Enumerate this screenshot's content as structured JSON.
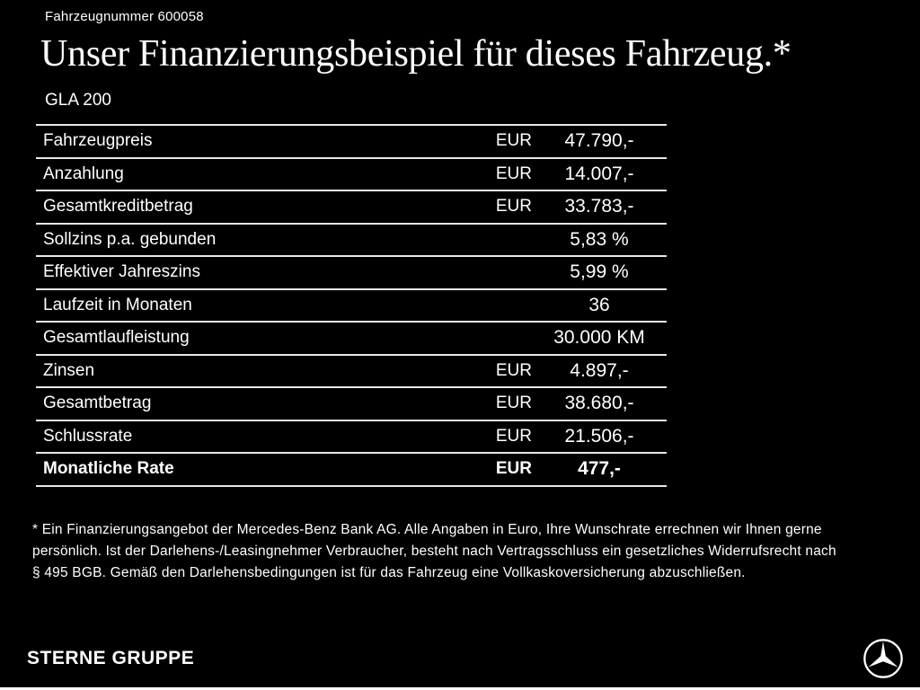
{
  "header": {
    "vehicle_number": "Fahrzeugnummer 600058",
    "title": "Unser Finanzierungsbeispiel für dieses Fahrzeug.*",
    "model": "GLA 200"
  },
  "table": {
    "rows": [
      {
        "label": "Fahrzeugpreis",
        "currency": "EUR",
        "value": "47.790,-",
        "bold": false
      },
      {
        "label": "Anzahlung",
        "currency": "EUR",
        "value": "14.007,-",
        "bold": false
      },
      {
        "label": "Gesamtkreditbetrag",
        "currency": "EUR",
        "value": "33.783,-",
        "bold": false
      },
      {
        "label": "Sollzins p.a. gebunden",
        "currency": "",
        "value": "5,83 %",
        "bold": false
      },
      {
        "label": "Effektiver Jahreszins",
        "currency": "",
        "value": "5,99 %",
        "bold": false
      },
      {
        "label": "Laufzeit in Monaten",
        "currency": "",
        "value": "36",
        "bold": false
      },
      {
        "label": "Gesamtlaufleistung",
        "currency": "",
        "value": "30.000 KM",
        "bold": false
      },
      {
        "label": "Zinsen",
        "currency": "EUR",
        "value": "4.897,-",
        "bold": false
      },
      {
        "label": "Gesamtbetrag",
        "currency": "EUR",
        "value": "38.680,-",
        "bold": false
      },
      {
        "label": "Schlussrate",
        "currency": "EUR",
        "value": "21.506,-",
        "bold": false
      },
      {
        "label": "Monatliche Rate",
        "currency": "EUR",
        "value": "477,-",
        "bold": true
      }
    ]
  },
  "footnote": {
    "lines": [
      "* Ein Finanzierungsangebot der Mercedes-Benz Bank AG. Alle Angaben in Euro, Ihre Wunschrate errechnen wir Ihnen gerne",
      "persönlich. Ist der Darlehens-/Leasingnehmer Verbraucher, besteht nach Vertragsschluss ein gesetzliches Widerrufsrecht nach",
      "§ 495 BGB. Gemäß den Darlehensbedingungen ist für das Fahrzeug eine Vollkaskoversicherung abzuschließen."
    ]
  },
  "footer": {
    "brand": "STERNE GRUPPE",
    "logo": "mercedes-star-icon"
  },
  "colors": {
    "background": "#000000",
    "text": "#ffffff",
    "divider": "#e8e8e8"
  }
}
